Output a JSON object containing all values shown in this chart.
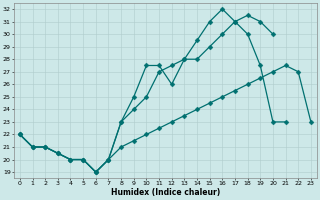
{
  "xlabel": "Humidex (Indice chaleur)",
  "bg_color": "#cde8e8",
  "grid_color": "#b0cccc",
  "line_color": "#007070",
  "xlim": [
    -0.5,
    23.5
  ],
  "ylim": [
    18.5,
    32.5
  ],
  "yticks": [
    19,
    20,
    21,
    22,
    23,
    24,
    25,
    26,
    27,
    28,
    29,
    30,
    31,
    32
  ],
  "xticks": [
    0,
    1,
    2,
    3,
    4,
    5,
    6,
    7,
    8,
    9,
    10,
    11,
    12,
    13,
    14,
    15,
    16,
    17,
    18,
    19,
    20,
    21,
    22,
    23
  ],
  "line1_x": [
    0,
    1,
    2,
    3,
    4,
    5,
    6,
    7,
    8,
    9,
    10,
    11,
    12,
    13,
    14,
    15,
    16,
    17,
    18,
    19,
    20,
    21,
    22
  ],
  "line1_y": [
    22,
    21,
    21,
    20.5,
    20,
    20,
    19,
    20,
    23,
    25,
    27.5,
    27.5,
    26,
    28,
    29.5,
    31,
    32,
    31,
    30,
    27.5,
    23,
    23,
    null
  ],
  "line2_x": [
    0,
    1,
    2,
    3,
    4,
    5,
    6,
    7,
    8,
    9,
    10,
    11,
    12,
    13,
    14,
    15,
    16,
    17,
    18,
    19,
    20
  ],
  "line2_y": [
    22,
    21,
    21,
    20.5,
    20,
    20,
    19,
    20,
    23,
    24,
    25,
    27,
    27.5,
    28,
    28,
    29,
    30,
    31,
    31.5,
    31,
    30
  ],
  "line3_x": [
    0,
    1,
    2,
    3,
    4,
    5,
    6,
    7,
    8,
    9,
    10,
    11,
    12,
    13,
    14,
    15,
    16,
    17,
    18,
    19,
    20,
    21,
    22,
    23
  ],
  "line3_y": [
    22,
    21,
    21,
    20.5,
    20,
    20,
    19,
    20,
    21,
    21.5,
    22,
    22.5,
    23,
    23.5,
    24,
    24.5,
    25,
    25.5,
    26,
    26.5,
    27,
    27.5,
    27,
    23
  ]
}
